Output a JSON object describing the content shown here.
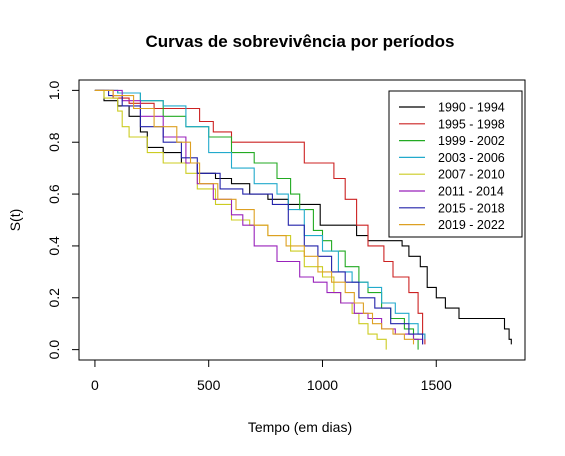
{
  "chart_data": {
    "type": "line",
    "step": true,
    "title": "Curvas de sobrevivência por períodos",
    "xlabel": "Tempo (em dias)",
    "ylabel": "S(t)",
    "xlim": [
      -70,
      1890
    ],
    "ylim": [
      -0.04,
      1.04
    ],
    "xticks": [
      0,
      500,
      1000,
      1500
    ],
    "yticks": [
      0.0,
      0.2,
      0.4,
      0.6,
      0.8,
      1.0
    ],
    "ytick_labels": [
      "0.0",
      "0.2",
      "0.4",
      "0.6",
      "0.8",
      "1.0"
    ],
    "legend_position": "top-right",
    "series": [
      {
        "name": "1990 - 1994",
        "color": "#000000",
        "points": [
          [
            0,
            1.0
          ],
          [
            40,
            0.96
          ],
          [
            100,
            0.94
          ],
          [
            150,
            0.9
          ],
          [
            200,
            0.84
          ],
          [
            230,
            0.78
          ],
          [
            300,
            0.76
          ],
          [
            380,
            0.72
          ],
          [
            450,
            0.68
          ],
          [
            530,
            0.66
          ],
          [
            600,
            0.64
          ],
          [
            680,
            0.6
          ],
          [
            760,
            0.58
          ],
          [
            850,
            0.56
          ],
          [
            990,
            0.48
          ],
          [
            1150,
            0.44
          ],
          [
            1200,
            0.42
          ],
          [
            1350,
            0.4
          ],
          [
            1380,
            0.36
          ],
          [
            1430,
            0.32
          ],
          [
            1460,
            0.24
          ],
          [
            1500,
            0.2
          ],
          [
            1540,
            0.16
          ],
          [
            1600,
            0.12
          ],
          [
            1800,
            0.08
          ],
          [
            1820,
            0.04
          ],
          [
            1830,
            0.02
          ]
        ]
      },
      {
        "name": "1995 - 1998",
        "color": "#CC2222",
        "points": [
          [
            0,
            1.0
          ],
          [
            80,
            0.97
          ],
          [
            150,
            0.95
          ],
          [
            260,
            0.93
          ],
          [
            460,
            0.88
          ],
          [
            520,
            0.84
          ],
          [
            600,
            0.8
          ],
          [
            920,
            0.72
          ],
          [
            1050,
            0.66
          ],
          [
            1100,
            0.58
          ],
          [
            1150,
            0.48
          ],
          [
            1200,
            0.4
          ],
          [
            1270,
            0.34
          ],
          [
            1310,
            0.28
          ],
          [
            1380,
            0.22
          ],
          [
            1420,
            0.14
          ],
          [
            1440,
            0.06
          ],
          [
            1450,
            0.02
          ]
        ]
      },
      {
        "name": "1999 - 2002",
        "color": "#22AA22",
        "points": [
          [
            0,
            1.0
          ],
          [
            100,
            0.99
          ],
          [
            200,
            0.96
          ],
          [
            300,
            0.9
          ],
          [
            400,
            0.86
          ],
          [
            500,
            0.82
          ],
          [
            600,
            0.76
          ],
          [
            700,
            0.72
          ],
          [
            800,
            0.66
          ],
          [
            860,
            0.6
          ],
          [
            900,
            0.54
          ],
          [
            960,
            0.46
          ],
          [
            1000,
            0.42
          ],
          [
            1040,
            0.38
          ],
          [
            1100,
            0.32
          ],
          [
            1160,
            0.26
          ],
          [
            1200,
            0.22
          ],
          [
            1260,
            0.16
          ],
          [
            1300,
            0.12
          ],
          [
            1360,
            0.08
          ],
          [
            1400,
            0.04
          ],
          [
            1420,
            0.0
          ]
        ]
      },
      {
        "name": "2003 - 2006",
        "color": "#22AACC",
        "points": [
          [
            0,
            1.0
          ],
          [
            100,
            0.99
          ],
          [
            200,
            0.96
          ],
          [
            300,
            0.94
          ],
          [
            400,
            0.86
          ],
          [
            500,
            0.76
          ],
          [
            600,
            0.7
          ],
          [
            700,
            0.64
          ],
          [
            800,
            0.6
          ],
          [
            850,
            0.54
          ],
          [
            920,
            0.44
          ],
          [
            1000,
            0.38
          ],
          [
            1070,
            0.3
          ],
          [
            1130,
            0.26
          ],
          [
            1200,
            0.24
          ],
          [
            1260,
            0.18
          ],
          [
            1320,
            0.14
          ],
          [
            1380,
            0.1
          ],
          [
            1420,
            0.06
          ],
          [
            1450,
            0.04
          ]
        ]
      },
      {
        "name": "2007 - 2010",
        "color": "#CCCC22",
        "points": [
          [
            0,
            1.0
          ],
          [
            40,
            0.97
          ],
          [
            100,
            0.92
          ],
          [
            120,
            0.86
          ],
          [
            150,
            0.82
          ],
          [
            230,
            0.76
          ],
          [
            300,
            0.72
          ],
          [
            400,
            0.68
          ],
          [
            450,
            0.62
          ],
          [
            530,
            0.56
          ],
          [
            600,
            0.5
          ],
          [
            680,
            0.48
          ],
          [
            760,
            0.44
          ],
          [
            860,
            0.38
          ],
          [
            920,
            0.32
          ],
          [
            1000,
            0.28
          ],
          [
            1050,
            0.22
          ],
          [
            1080,
            0.18
          ],
          [
            1130,
            0.14
          ],
          [
            1160,
            0.1
          ],
          [
            1200,
            0.06
          ],
          [
            1240,
            0.04
          ],
          [
            1280,
            0.0
          ]
        ]
      },
      {
        "name": "2011 - 2014",
        "color": "#9922BB",
        "points": [
          [
            0,
            1.0
          ],
          [
            120,
            0.96
          ],
          [
            200,
            0.9
          ],
          [
            300,
            0.82
          ],
          [
            400,
            0.72
          ],
          [
            450,
            0.64
          ],
          [
            520,
            0.58
          ],
          [
            600,
            0.52
          ],
          [
            650,
            0.48
          ],
          [
            700,
            0.4
          ],
          [
            800,
            0.34
          ],
          [
            900,
            0.28
          ],
          [
            960,
            0.26
          ],
          [
            1020,
            0.22
          ],
          [
            1080,
            0.18
          ],
          [
            1140,
            0.14
          ],
          [
            1200,
            0.12
          ],
          [
            1260,
            0.08
          ],
          [
            1320,
            0.06
          ],
          [
            1400,
            0.04
          ],
          [
            1440,
            0.02
          ]
        ]
      },
      {
        "name": "2015 - 2018",
        "color": "#2222AA",
        "points": [
          [
            0,
            1.0
          ],
          [
            60,
            0.98
          ],
          [
            120,
            0.94
          ],
          [
            200,
            0.86
          ],
          [
            300,
            0.8
          ],
          [
            380,
            0.74
          ],
          [
            450,
            0.68
          ],
          [
            550,
            0.62
          ],
          [
            650,
            0.6
          ],
          [
            780,
            0.56
          ],
          [
            850,
            0.48
          ],
          [
            920,
            0.4
          ],
          [
            980,
            0.36
          ],
          [
            1040,
            0.3
          ],
          [
            1100,
            0.26
          ],
          [
            1160,
            0.2
          ],
          [
            1230,
            0.16
          ],
          [
            1300,
            0.1
          ],
          [
            1380,
            0.06
          ],
          [
            1440,
            0.02
          ]
        ]
      },
      {
        "name": "2019 - 2022",
        "color": "#DDA022",
        "points": [
          [
            0,
            1.0
          ],
          [
            80,
            0.98
          ],
          [
            170,
            0.93
          ],
          [
            260,
            0.86
          ],
          [
            360,
            0.8
          ],
          [
            420,
            0.72
          ],
          [
            460,
            0.64
          ],
          [
            540,
            0.58
          ],
          [
            620,
            0.54
          ],
          [
            700,
            0.48
          ],
          [
            760,
            0.44
          ],
          [
            840,
            0.4
          ],
          [
            920,
            0.36
          ],
          [
            980,
            0.3
          ],
          [
            1040,
            0.26
          ],
          [
            1100,
            0.22
          ],
          [
            1140,
            0.18
          ],
          [
            1180,
            0.14
          ],
          [
            1220,
            0.1
          ],
          [
            1260,
            0.08
          ],
          [
            1310,
            0.06
          ],
          [
            1360,
            0.04
          ],
          [
            1400,
            0.02
          ]
        ]
      }
    ]
  }
}
